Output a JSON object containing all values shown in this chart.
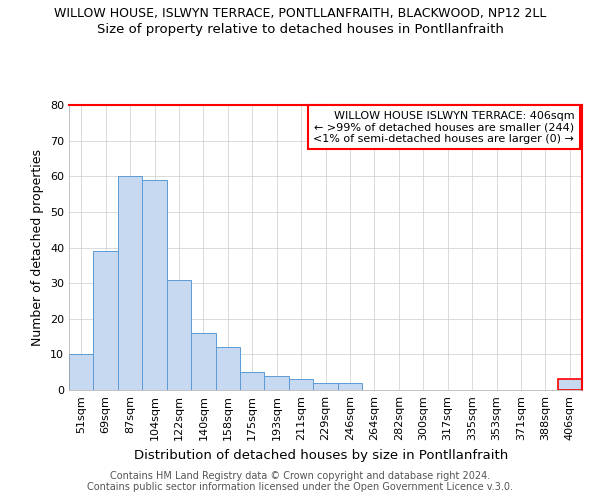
{
  "title": "WILLOW HOUSE, ISLWYN TERRACE, PONTLLANFRAITH, BLACKWOOD, NP12 2LL",
  "subtitle": "Size of property relative to detached houses in Pontllanfraith",
  "xlabel": "Distribution of detached houses by size in Pontllanfraith",
  "ylabel": "Number of detached properties",
  "categories": [
    "51sqm",
    "69sqm",
    "87sqm",
    "104sqm",
    "122sqm",
    "140sqm",
    "158sqm",
    "175sqm",
    "193sqm",
    "211sqm",
    "229sqm",
    "246sqm",
    "264sqm",
    "282sqm",
    "300sqm",
    "317sqm",
    "335sqm",
    "353sqm",
    "371sqm",
    "388sqm",
    "406sqm"
  ],
  "values": [
    10,
    39,
    60,
    59,
    31,
    16,
    12,
    5,
    4,
    3,
    2,
    2,
    0,
    0,
    0,
    0,
    0,
    0,
    0,
    0,
    3
  ],
  "bar_color": "#c6d9f0",
  "bar_edge_color": "#5b9bd5",
  "highlight_edge_color": "#ff0000",
  "highlight_index": 20,
  "ylim": [
    0,
    80
  ],
  "yticks": [
    0,
    10,
    20,
    30,
    40,
    50,
    60,
    70,
    80
  ],
  "annotation_box_text": "WILLOW HOUSE ISLWYN TERRACE: 406sqm\n← >99% of detached houses are smaller (244)\n<1% of semi-detached houses are larger (0) →",
  "footer_line1": "Contains HM Land Registry data © Crown copyright and database right 2024.",
  "footer_line2": "Contains public sector information licensed under the Open Government Licence v.3.0.",
  "background_color": "#ffffff",
  "grid_color": "#cccccc",
  "title_fontsize": 9,
  "subtitle_fontsize": 9.5,
  "xlabel_fontsize": 9.5,
  "ylabel_fontsize": 9,
  "tick_fontsize": 8,
  "annotation_fontsize": 8,
  "footer_fontsize": 7
}
